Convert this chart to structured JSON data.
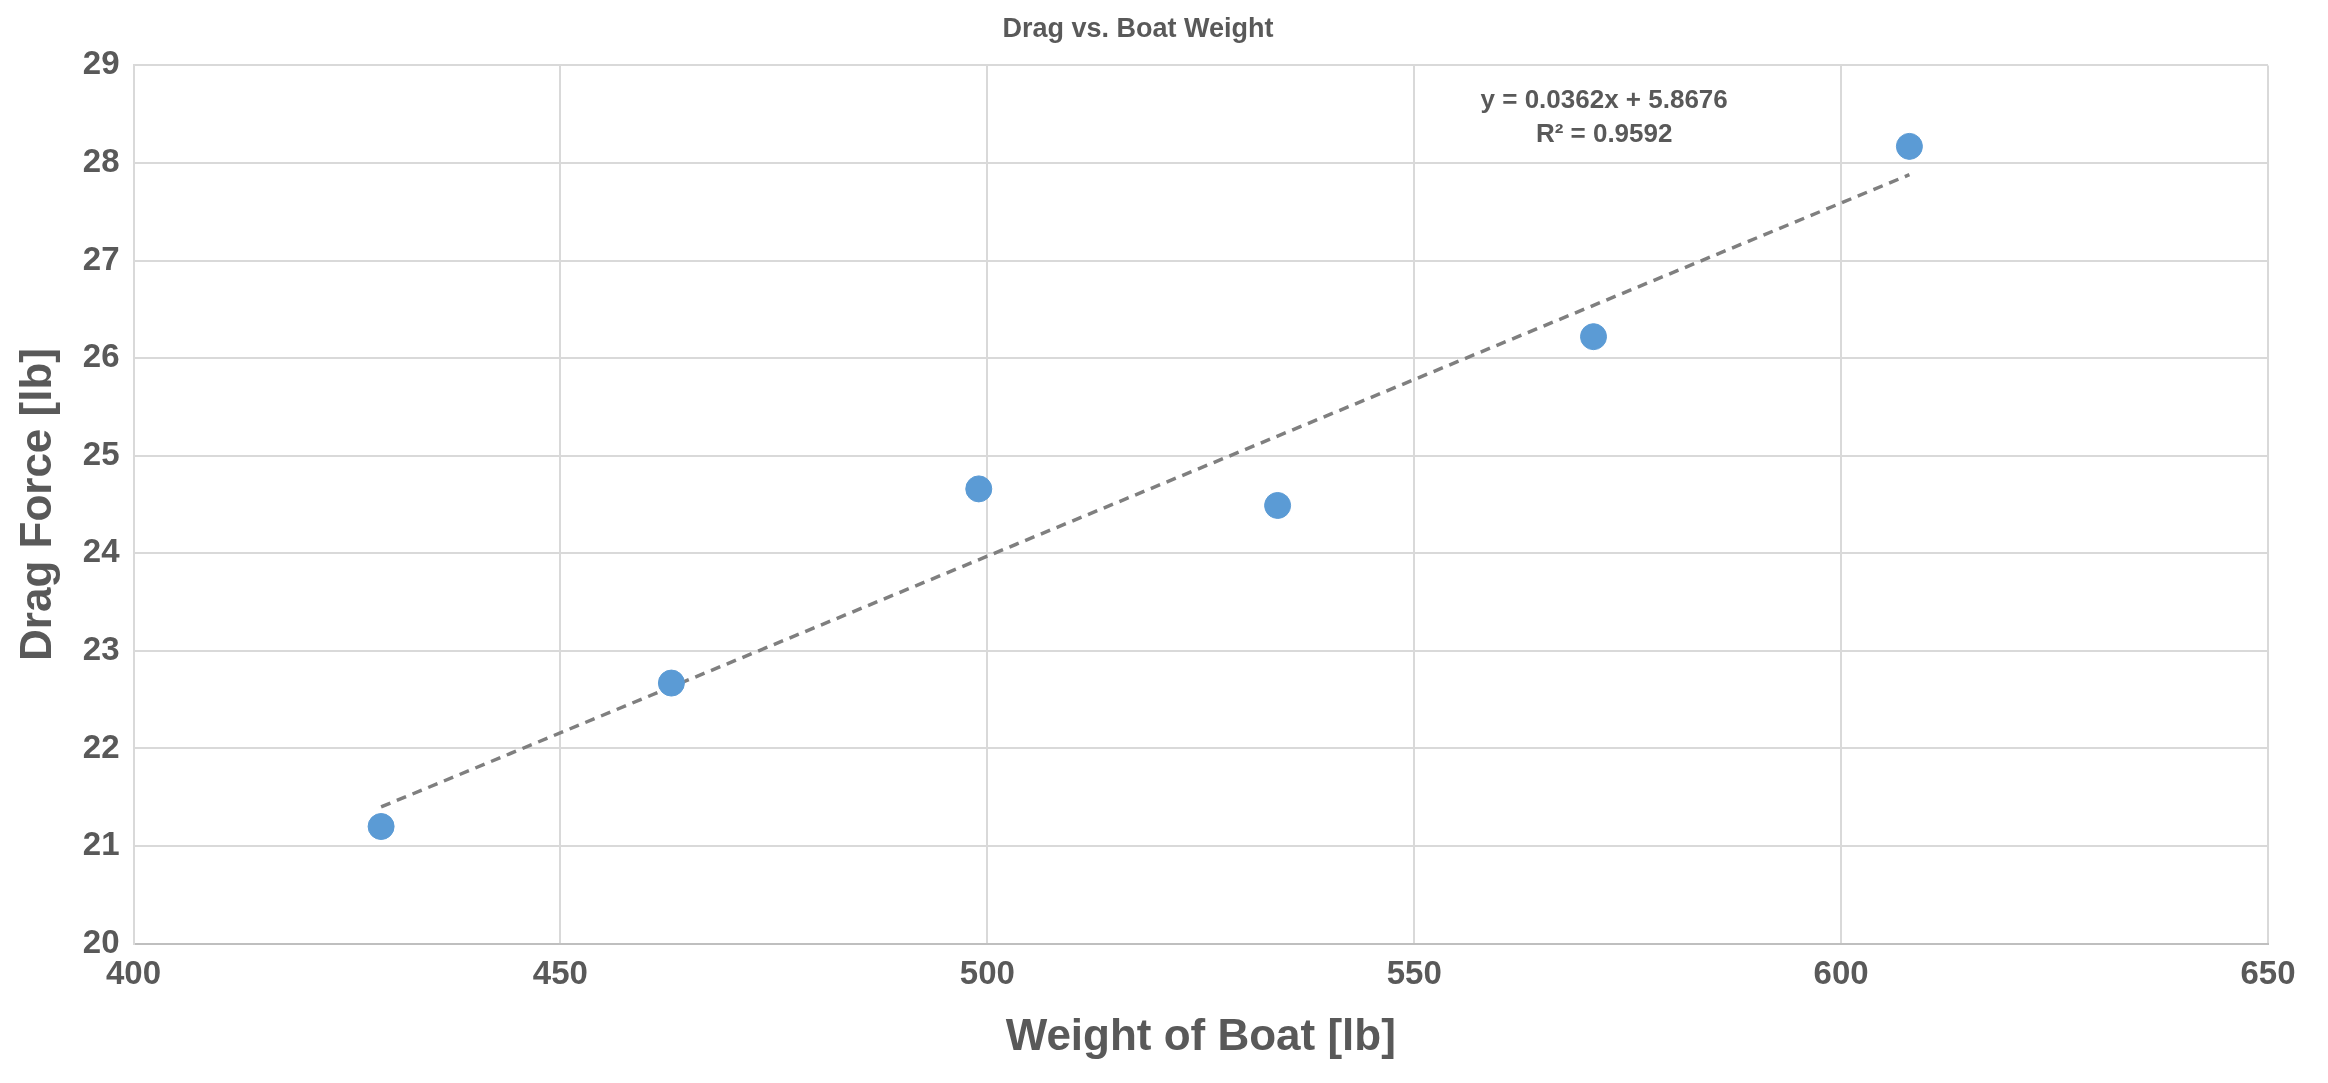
{
  "chart_data": {
    "type": "scatter",
    "title": "Drag vs. Boat Weight",
    "xlabel": "Weight of Boat [lb]",
    "ylabel": "Drag Force [lb]",
    "x": [
      429,
      463,
      499,
      534,
      571,
      608
    ],
    "series": [
      {
        "color": "#5b9bd5",
        "values": [
          21.2,
          22.67,
          24.66,
          24.49,
          26.22,
          28.17
        ]
      },
      {
        "type": "line",
        "x": [
          429,
          608
        ],
        "values": [
          21.4,
          27.88
        ],
        "color": "#7f7f7f",
        "line_style": "dashed",
        "marker": "none"
      }
    ],
    "annotations": [
      "y = 0.0362x + 5.8676",
      "R² = 0.9592"
    ],
    "xlim": [
      400,
      650
    ],
    "xticks": [
      400,
      450,
      500,
      550,
      600,
      650
    ],
    "ylim": [
      20,
      29
    ],
    "yticks": [
      20,
      21,
      22,
      23,
      24,
      25,
      26,
      27,
      28,
      29
    ],
    "grid": true,
    "legend": false,
    "marker": "circle"
  }
}
